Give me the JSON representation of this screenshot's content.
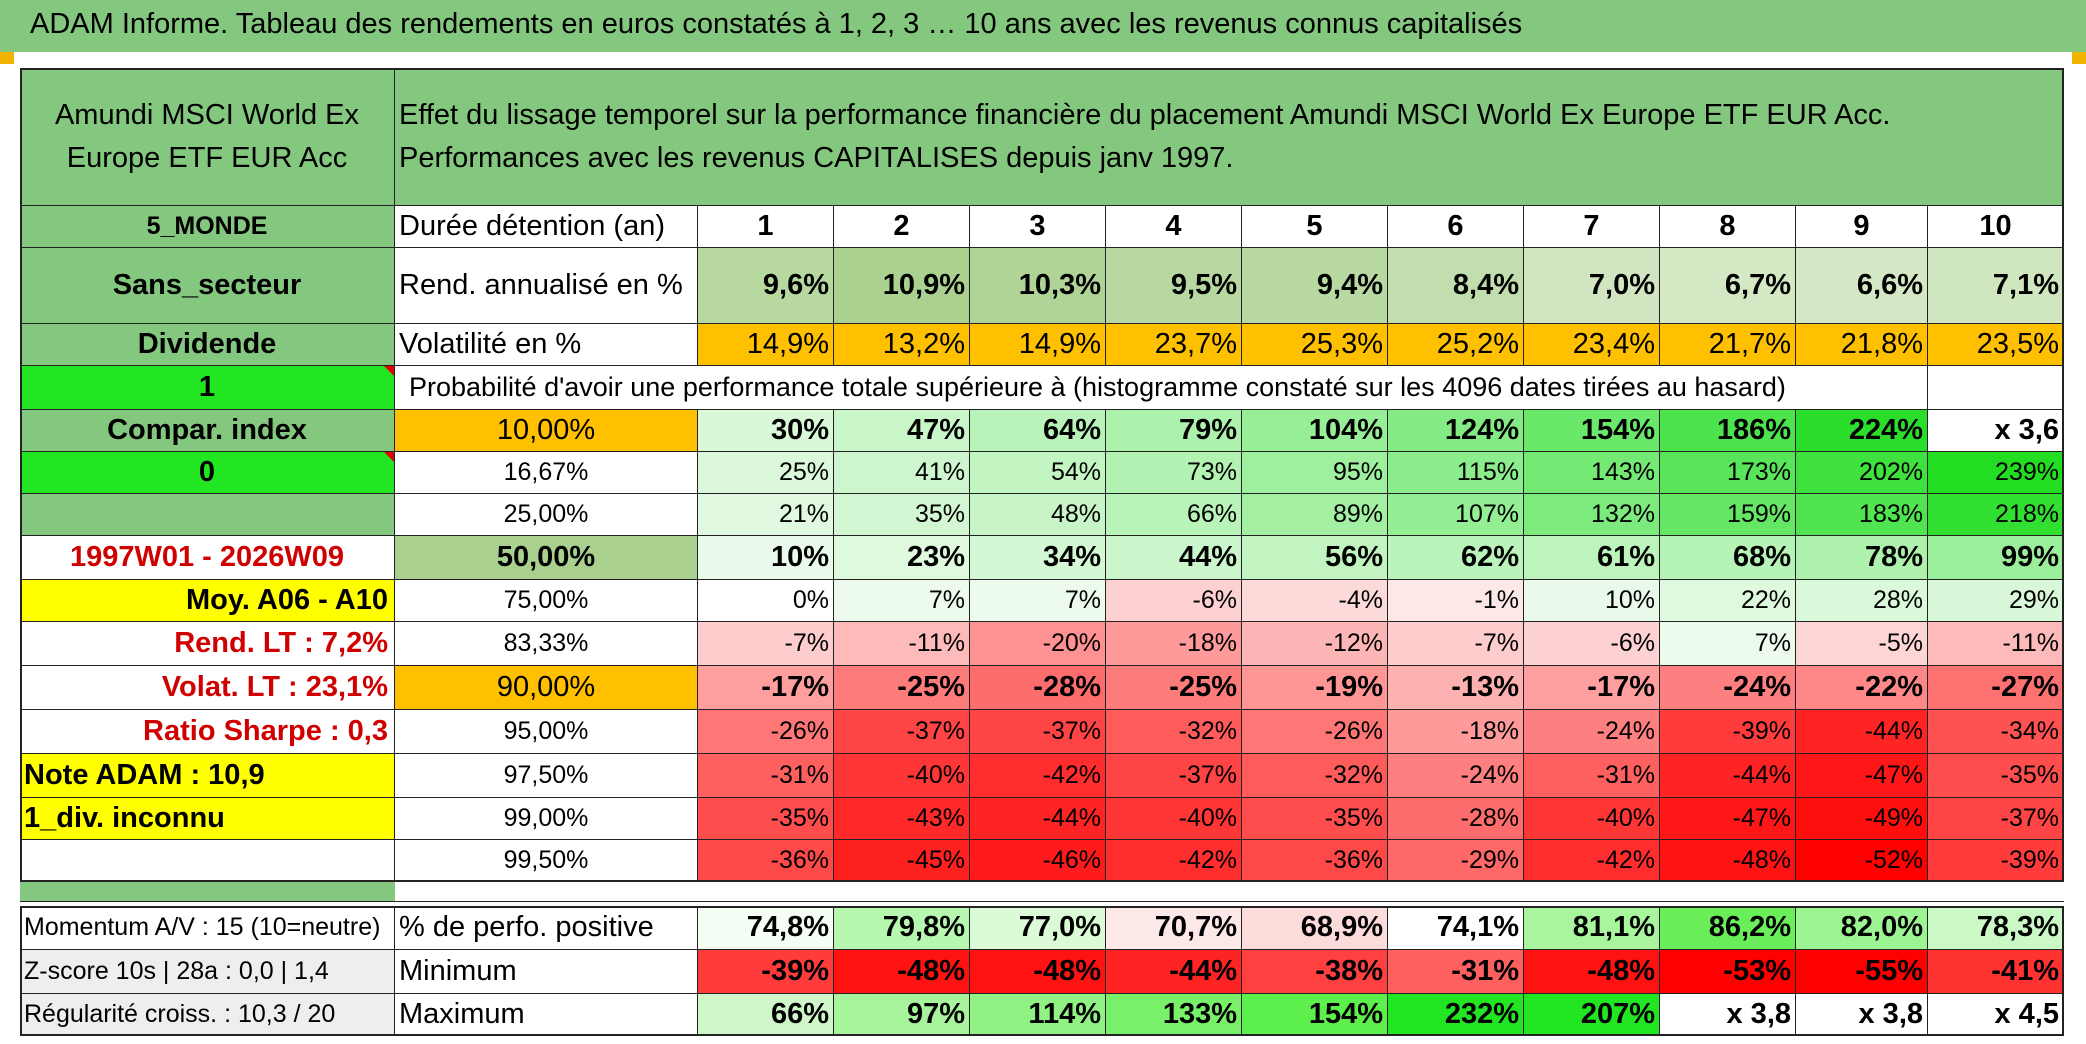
{
  "title": "ADAM Informe. Tableau des rendements en euros constatés à 1, 2, 3 … 10 ans avec les revenus connus capitalisés",
  "fund_name": "Amundi MSCI World Ex Europe ETF EUR Acc",
  "description_line1": "Effet du lissage temporel sur la performance financière du placement Amundi MSCI World Ex Europe ETF EUR Acc.",
  "description_line2": "Performances avec les revenus CAPITALISES depuis janv 1997.",
  "colors": {
    "header_green": "#84c77e",
    "bright_green": "#22e622",
    "orange": "#ffc000",
    "yellow": "#ffff00",
    "label_red": "#d00000",
    "strong_red": "#ff0000",
    "pale_green": "#c6e0b4"
  },
  "left_labels": {
    "category": "5_MONDE",
    "sector": "Sans_secteur",
    "dividend": "Dividende",
    "one": "1",
    "compar_index": "Compar. index",
    "zero": "0",
    "period": "1997W01 - 2026W09",
    "moy": "Moy. A06 - A10",
    "rend_lt": "Rend. LT :   7,2%",
    "volat_lt": "Volat. LT :   23,1%",
    "sharpe": "Ratio Sharpe :   0,3",
    "note": "Note ADAM : 10,9",
    "div": "1_div. inconnu",
    "momentum": "Momentum A/V : 15 (10=neutre)",
    "zscore": "Z-score 10s | 28a : 0,0 | 1,4",
    "regularite": "Régularité croiss. : 10,3 / 20"
  },
  "row_labels": {
    "duree": "Durée détention (an)",
    "rend": "Rend. annualisé en %",
    "volat": "Volatilité en %",
    "proba": "Probabilité d'avoir une performance totale supérieure à (histogramme constaté sur les 4096 dates tirées au hasard)",
    "perf_pos": "% de perfo. positive",
    "minimum": "Minimum",
    "maximum": "Maximum"
  },
  "years": [
    "1",
    "2",
    "3",
    "4",
    "5",
    "6",
    "7",
    "8",
    "9",
    "10"
  ],
  "rend_annualise": [
    "9,6%",
    "10,9%",
    "10,3%",
    "9,5%",
    "9,4%",
    "8,4%",
    "7,0%",
    "6,7%",
    "6,6%",
    "7,1%"
  ],
  "volatilite": [
    "14,9%",
    "13,2%",
    "14,9%",
    "23,7%",
    "25,3%",
    "25,2%",
    "23,4%",
    "21,7%",
    "21,8%",
    "23,5%"
  ],
  "prob_rows": [
    {
      "pct": "10,00%",
      "values": [
        "30%",
        "47%",
        "64%",
        "79%",
        "104%",
        "124%",
        "154%",
        "186%",
        "224%",
        "x 3,6"
      ]
    },
    {
      "pct": "16,67%",
      "values": [
        "25%",
        "41%",
        "54%",
        "73%",
        "95%",
        "115%",
        "143%",
        "173%",
        "202%",
        "239%"
      ]
    },
    {
      "pct": "25,00%",
      "values": [
        "21%",
        "35%",
        "48%",
        "66%",
        "89%",
        "107%",
        "132%",
        "159%",
        "183%",
        "218%"
      ]
    },
    {
      "pct": "50,00%",
      "values": [
        "10%",
        "23%",
        "34%",
        "44%",
        "56%",
        "62%",
        "61%",
        "68%",
        "78%",
        "99%"
      ]
    },
    {
      "pct": "75,00%",
      "values": [
        "0%",
        "7%",
        "7%",
        "-6%",
        "-4%",
        "-1%",
        "10%",
        "22%",
        "28%",
        "29%"
      ]
    },
    {
      "pct": "83,33%",
      "values": [
        "-7%",
        "-11%",
        "-20%",
        "-18%",
        "-12%",
        "-7%",
        "-6%",
        "7%",
        "-5%",
        "-11%"
      ]
    },
    {
      "pct": "90,00%",
      "values": [
        "-17%",
        "-25%",
        "-28%",
        "-25%",
        "-19%",
        "-13%",
        "-17%",
        "-24%",
        "-22%",
        "-27%"
      ]
    },
    {
      "pct": "95,00%",
      "values": [
        "-26%",
        "-37%",
        "-37%",
        "-32%",
        "-26%",
        "-18%",
        "-24%",
        "-39%",
        "-44%",
        "-34%"
      ]
    },
    {
      "pct": "97,50%",
      "values": [
        "-31%",
        "-40%",
        "-42%",
        "-37%",
        "-32%",
        "-24%",
        "-31%",
        "-44%",
        "-47%",
        "-35%"
      ]
    },
    {
      "pct": "99,00%",
      "values": [
        "-35%",
        "-43%",
        "-44%",
        "-40%",
        "-35%",
        "-28%",
        "-40%",
        "-47%",
        "-49%",
        "-37%"
      ]
    },
    {
      "pct": "99,50%",
      "values": [
        "-36%",
        "-45%",
        "-46%",
        "-42%",
        "-36%",
        "-29%",
        "-42%",
        "-48%",
        "-52%",
        "-39%"
      ]
    }
  ],
  "perf_positive": [
    "74,8%",
    "79,8%",
    "77,0%",
    "70,7%",
    "68,9%",
    "74,1%",
    "81,1%",
    "86,2%",
    "82,0%",
    "78,3%"
  ],
  "minimum": [
    "-39%",
    "-48%",
    "-48%",
    "-44%",
    "-38%",
    "-31%",
    "-48%",
    "-53%",
    "-55%",
    "-41%"
  ],
  "maximum": [
    "66%",
    "97%",
    "114%",
    "133%",
    "154%",
    "232%",
    "207%",
    "x 3,8",
    "x 3,8",
    "x 4,5"
  ]
}
